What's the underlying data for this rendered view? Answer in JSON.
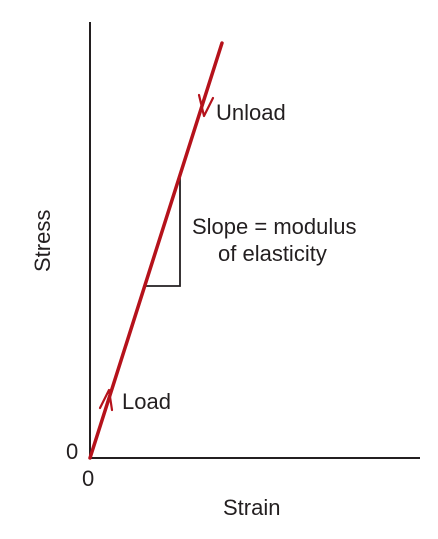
{
  "axes": {
    "x_label": "Strain",
    "y_label": "Stress",
    "x_origin": "0",
    "y_origin": "0"
  },
  "annotations": {
    "unload": "Unload",
    "load": "Load",
    "slope_line1": "Slope = modulus",
    "slope_line2": "of elasticity"
  },
  "colors": {
    "curve": "#b5121b",
    "axis": "#231f20"
  }
}
